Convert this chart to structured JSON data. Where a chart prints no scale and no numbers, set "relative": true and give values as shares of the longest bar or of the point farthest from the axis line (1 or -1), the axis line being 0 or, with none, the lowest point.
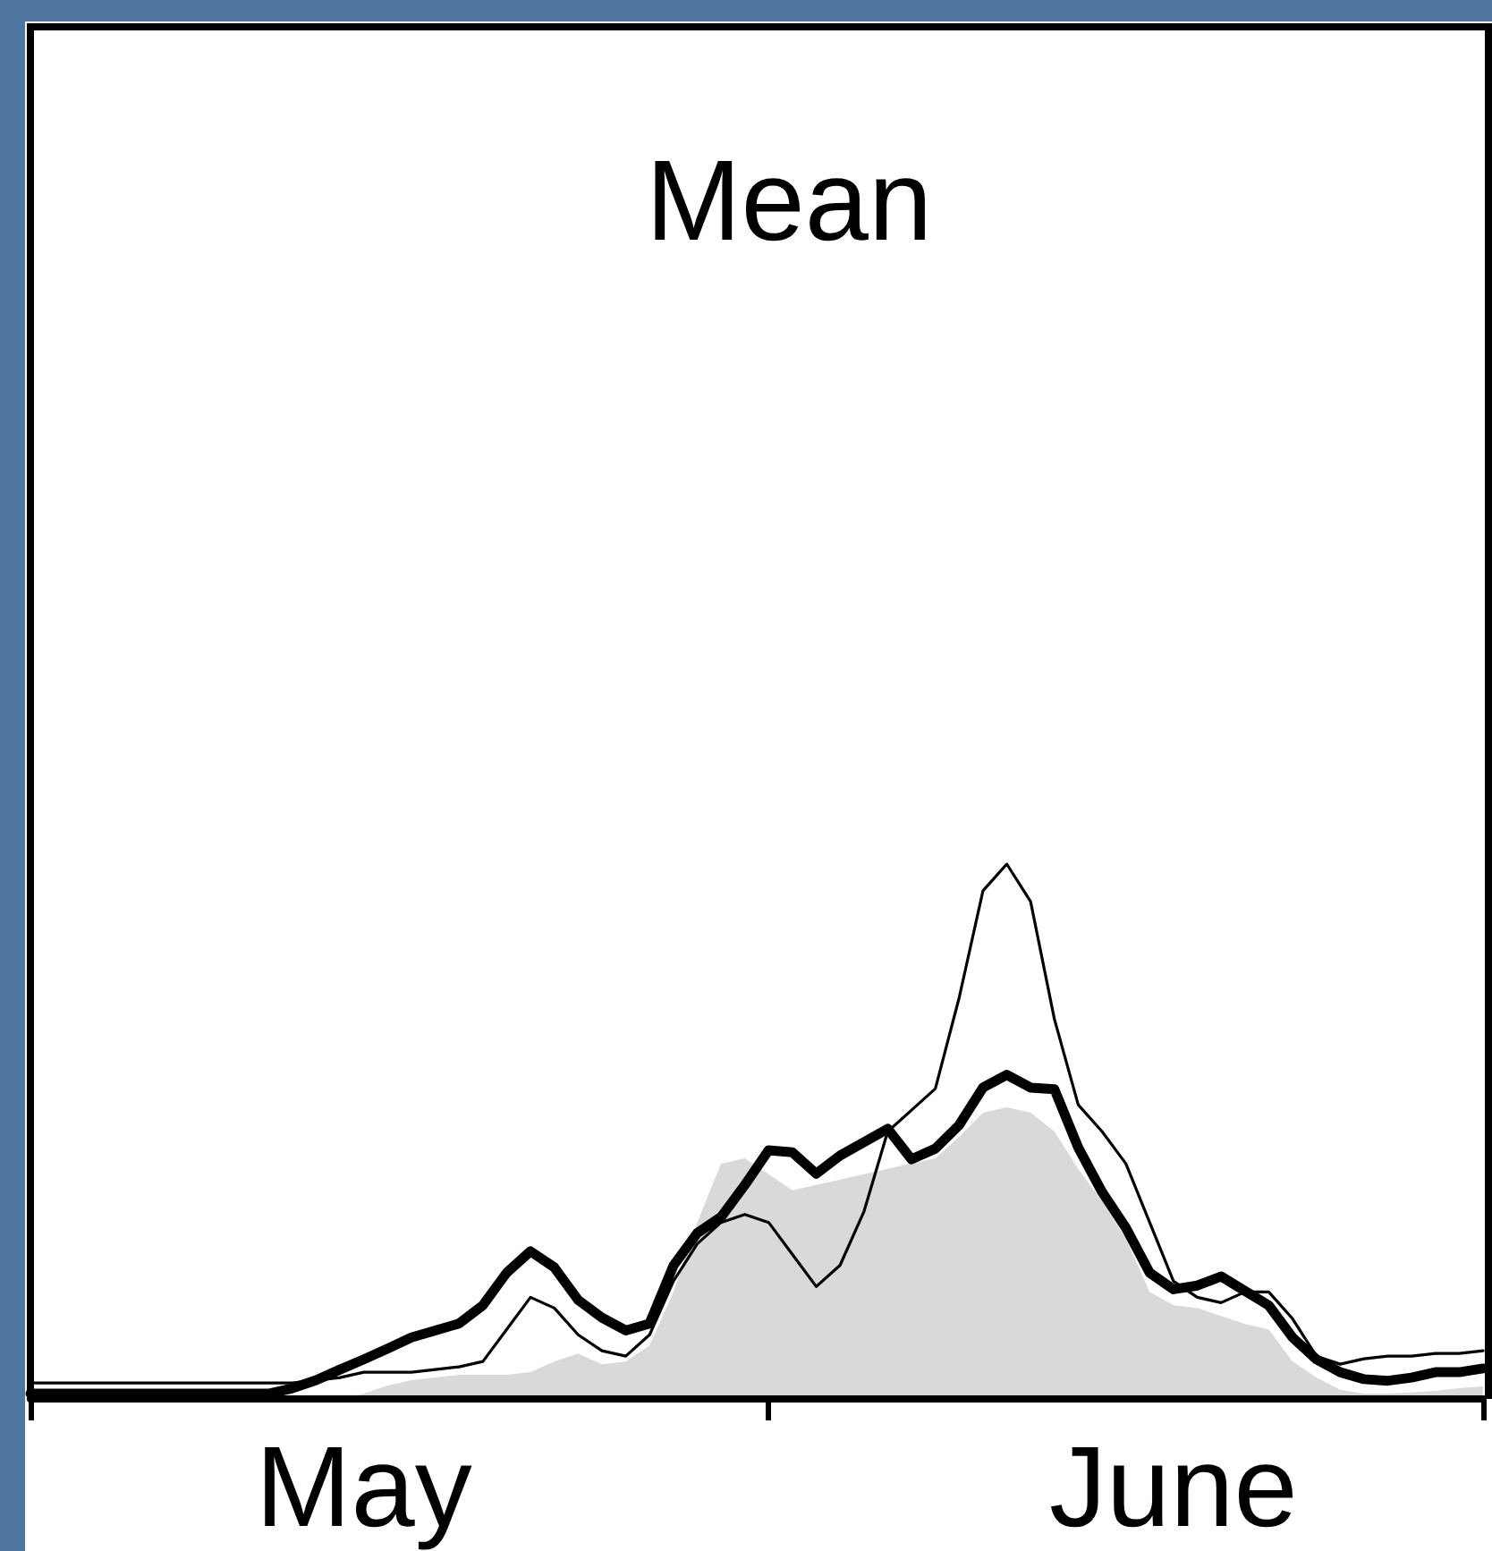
{
  "chart_data": {
    "type": "line",
    "title": "Mean",
    "relative": true,
    "x": [
      "--05-01",
      "--05-02",
      "--05-03",
      "--05-04",
      "--05-05",
      "--05-06",
      "--05-07",
      "--05-08",
      "--05-09",
      "--05-10",
      "--05-11",
      "--05-12",
      "--05-13",
      "--05-14",
      "--05-15",
      "--05-16",
      "--05-17",
      "--05-18",
      "--05-19",
      "--05-20",
      "--05-21",
      "--05-22",
      "--05-23",
      "--05-24",
      "--05-25",
      "--05-26",
      "--05-27",
      "--05-28",
      "--05-29",
      "--05-30",
      "--05-31",
      "--06-01",
      "--06-02",
      "--06-03",
      "--06-04",
      "--06-05",
      "--06-06",
      "--06-07",
      "--06-08",
      "--06-09",
      "--06-10",
      "--06-11",
      "--06-12",
      "--06-13",
      "--06-14",
      "--06-15",
      "--06-16",
      "--06-17",
      "--06-18",
      "--06-19",
      "--06-20",
      "--06-21",
      "--06-22",
      "--06-23",
      "--06-24",
      "--06-25",
      "--06-26",
      "--06-27",
      "--06-28",
      "--06-29",
      "--06-30",
      "--07-01"
    ],
    "xlim": [
      "--05-01",
      "--07-01"
    ],
    "xticks": [
      {
        "value": "--05-01",
        "label": null
      },
      {
        "value": "--05-15",
        "label": "May"
      },
      {
        "value": "--06-01",
        "label": null
      },
      {
        "value": "--06-18",
        "label": "June"
      },
      {
        "value": "--07-01",
        "label": null
      }
    ],
    "series": [
      {
        "type": "area",
        "color": "#d9d9d9",
        "values": [
          0,
          0,
          0,
          0,
          0,
          0,
          0,
          0,
          0,
          0,
          0,
          0,
          0,
          0,
          0.01,
          0.025,
          0.035,
          0.04,
          0.045,
          0.045,
          0.045,
          0.05,
          0.07,
          0.085,
          0.065,
          0.07,
          0.1,
          0.2,
          0.33,
          0.44,
          0.45,
          0.42,
          0.39,
          0.4,
          0.41,
          0.42,
          0.43,
          0.44,
          0.45,
          0.49,
          0.535,
          0.545,
          0.535,
          0.5,
          0.43,
          0.37,
          0.3,
          0.2,
          0.175,
          0.17,
          0.155,
          0.14,
          0.13,
          0.07,
          0.04,
          0.017,
          0.01,
          0.01,
          0.012,
          0.015,
          0.02,
          0.024
        ]
      },
      {
        "color": "#000000",
        "values": [
          0.03,
          0.03,
          0.03,
          0.03,
          0.03,
          0.03,
          0.03,
          0.03,
          0.03,
          0.03,
          0.03,
          0.03,
          0.035,
          0.04,
          0.05,
          0.05,
          0.05,
          0.055,
          0.06,
          0.07,
          0.13,
          0.19,
          0.17,
          0.12,
          0.09,
          0.08,
          0.12,
          0.22,
          0.29,
          0.33,
          0.345,
          0.33,
          0.27,
          0.21,
          0.25,
          0.35,
          0.5,
          0.54,
          0.58,
          0.75,
          0.95,
          1,
          0.93,
          0.71,
          0.55,
          0.5,
          0.44,
          0.33,
          0.22,
          0.19,
          0.18,
          0.2,
          0.2,
          0.15,
          0.08,
          0.065,
          0.075,
          0.08,
          0.08,
          0.085,
          0.085,
          0.09
        ]
      },
      {
        "color": "#000000",
        "values": [
          0.01,
          0.01,
          0.01,
          0.01,
          0.01,
          0.01,
          0.01,
          0.01,
          0.01,
          0.01,
          0.01,
          0.02,
          0.035,
          0.055,
          0.074,
          0.094,
          0.115,
          0.128,
          0.141,
          0.175,
          0.236,
          0.276,
          0.246,
          0.185,
          0.152,
          0.128,
          0.141,
          0.249,
          0.31,
          0.34,
          0.4,
          0.465,
          0.461,
          0.421,
          0.455,
          0.48,
          0.505,
          0.448,
          0.468,
          0.512,
          0.582,
          0.606,
          0.582,
          0.579,
          0.47,
          0.387,
          0.32,
          0.236,
          0.205,
          0.212,
          0.229,
          0.202,
          0.175,
          0.115,
          0.074,
          0.05,
          0.037,
          0.034,
          0.04,
          0.05,
          0.05,
          0.057
        ]
      }
    ]
  }
}
